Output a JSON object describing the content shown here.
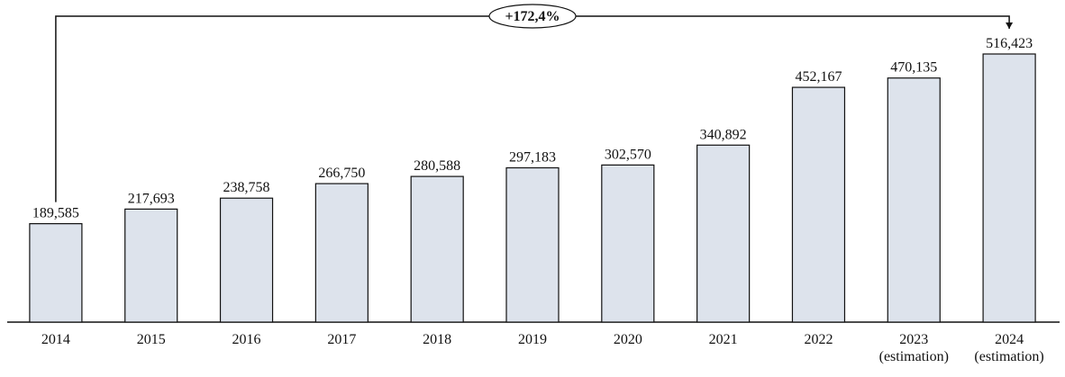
{
  "chart_data": {
    "type": "bar",
    "annotation": "+172,4%",
    "categories": [
      "2014",
      "2015",
      "2016",
      "2017",
      "2018",
      "2019",
      "2020",
      "2021",
      "2022",
      "2023 (estimation)",
      "2024 (estimation)"
    ],
    "values": [
      189585,
      217693,
      238758,
      266750,
      280588,
      297183,
      302570,
      340892,
      452167,
      470135,
      516423
    ],
    "value_labels": [
      "189,585",
      "217,693",
      "238,758",
      "266,750",
      "280,588",
      "297,183",
      "302,570",
      "340,892",
      "452,167",
      "470,135",
      "516,423"
    ],
    "color": "#dde3ec"
  }
}
